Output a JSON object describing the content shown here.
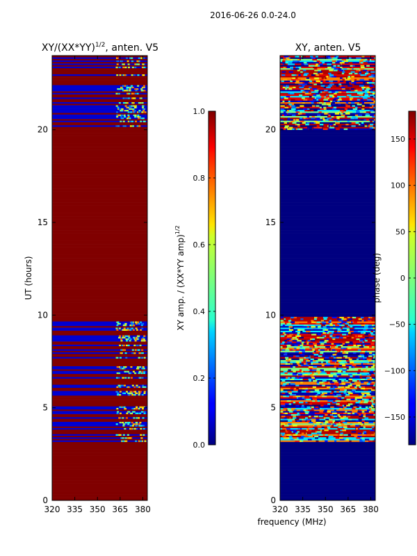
{
  "suptitle": "2016-06-26 0.0-24.0",
  "chart_data": [
    {
      "type": "heatmap",
      "title": "XY/(XX*YY)^{1/2}, anten. V5",
      "title_main": "XY/(XX*YY)",
      "title_exp": "1/2",
      "title_tail": ", anten. V5",
      "ylabel": "UT (hours)",
      "xlabel": "",
      "xlim": [
        320,
        383
      ],
      "ylim": [
        0,
        24
      ],
      "xticks": [
        "320",
        "335",
        "350",
        "365",
        "380"
      ],
      "xtick_values": [
        320,
        335,
        350,
        365,
        380
      ],
      "yticks": [
        "0",
        "5",
        "10",
        "15",
        "20"
      ],
      "ytick_values": [
        0,
        5,
        10,
        15,
        20
      ],
      "colorbar": {
        "label": "XY amp. / (XX*YY amp)^{1/2}",
        "label_main": "XY amp. / (XX*YY amp)",
        "label_exp": "1/2",
        "range": [
          0,
          1
        ],
        "ticks": [
          "0.0",
          "0.2",
          "0.4",
          "0.6",
          "0.8",
          "1.0"
        ],
        "tick_values": [
          0,
          0.2,
          0.4,
          0.6,
          0.8,
          1.0
        ]
      },
      "regions": [
        {
          "ut_range": [
            0,
            3.1
          ],
          "value": 1.0
        },
        {
          "ut_range": [
            3.1,
            4.1
          ],
          "value": "mixed"
        },
        {
          "ut_range": [
            4.1,
            9.8
          ],
          "value": "mixed"
        },
        {
          "ut_range": [
            9.8,
            20.0
          ],
          "value": 1.0
        },
        {
          "ut_range": [
            20.0,
            24.0
          ],
          "value": "mixed"
        }
      ]
    },
    {
      "type": "heatmap",
      "title": "XY, anten. V5",
      "ylabel": "",
      "xlabel": "frequency (MHz)",
      "xlim": [
        320,
        383
      ],
      "ylim": [
        0,
        24
      ],
      "xticks": [
        "320",
        "335",
        "350",
        "365",
        "380"
      ],
      "xtick_values": [
        320,
        335,
        350,
        365,
        380
      ],
      "yticks": [
        "0",
        "5",
        "10",
        "15",
        "20"
      ],
      "ytick_values": [
        0,
        5,
        10,
        15,
        20
      ],
      "colorbar": {
        "label": "phase (deg)",
        "range": [
          -180,
          180
        ],
        "ticks": [
          "−150",
          "−100",
          "−50",
          "0",
          "50",
          "100",
          "150"
        ],
        "tick_values": [
          -150,
          -100,
          -50,
          0,
          50,
          100,
          150
        ]
      },
      "regions": [
        {
          "ut_range": [
            0,
            3.1
          ],
          "value": -180
        },
        {
          "ut_range": [
            3.1,
            9.9
          ],
          "value": "mixed"
        },
        {
          "ut_range": [
            9.9,
            20.0
          ],
          "value": -180
        },
        {
          "ut_range": [
            20.0,
            24.0
          ],
          "value": "mixed"
        }
      ]
    }
  ]
}
